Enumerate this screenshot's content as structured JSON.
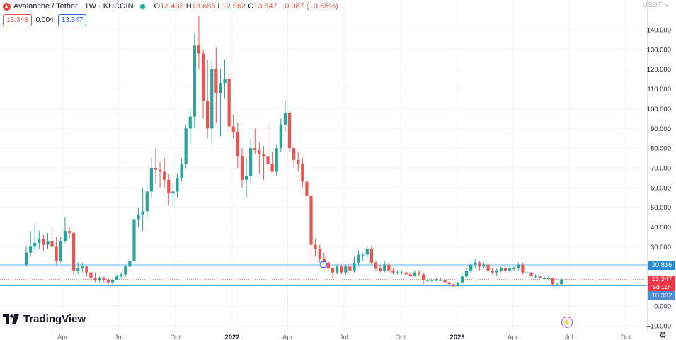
{
  "legend": {
    "pair": "Avalanche / Tether · 1W · KUCOIN",
    "open_label": "O",
    "open": "13.433",
    "high_label": "H",
    "high": "13.683",
    "low_label": "L",
    "low": "12.962",
    "close_label": "C",
    "close": "13.347",
    "change": "−0.087 (−0.65%)"
  },
  "order": {
    "sell_price": "13.343",
    "spread": "0.004",
    "buy_price": "13.347"
  },
  "currency": "USDT",
  "price_tags": {
    "resistance": "20.816",
    "last": "13.347",
    "countdown": "5d 11h",
    "support": "10.332"
  },
  "branding": {
    "logo_text": "TradingView"
  },
  "colors": {
    "up": "#26a69a",
    "down": "#ef5350",
    "resistance_line": "#5eb9f5",
    "support_line": "#2196f3",
    "support_tag": "#4c8ed9",
    "resistance_tag": "#2a8ad6",
    "last_tag": "#f23645",
    "grid": "#f0f3fa"
  },
  "icons": {
    "flash": "flash-icon",
    "settings": "gear-icon",
    "dropdown": "chevron-down-icon"
  },
  "chart_data": {
    "type": "candlestick",
    "interval": "1W",
    "ylim": [
      -10,
      148
    ],
    "y_ticks": [
      "−10.000",
      "0.000",
      "10.000",
      "20.000",
      "30.000",
      "40.000",
      "50.000",
      "60.000",
      "70.000",
      "80.000",
      "90.000",
      "100.000",
      "110.000",
      "120.000",
      "130.000",
      "140.000"
    ],
    "y_tick_values": [
      -10,
      0,
      10,
      20,
      30,
      40,
      50,
      60,
      70,
      80,
      90,
      100,
      110,
      120,
      130,
      140
    ],
    "x_ticks": [
      "Apr",
      "Jul",
      "Oct",
      "2022",
      "Apr",
      "Jul",
      "Oct",
      "2023",
      "Apr",
      "Jul",
      "Oct"
    ],
    "x_tick_dates": [
      "2021-04-01",
      "2021-07-01",
      "2021-10-01",
      "2022-01-01",
      "2022-04-01",
      "2022-07-01",
      "2022-10-01",
      "2023-01-01",
      "2023-04-01",
      "2023-07-01",
      "2023-10-01"
    ],
    "horizontal_lines": [
      {
        "price": 20.816,
        "style": "solid"
      },
      {
        "price": 13.347,
        "style": "dotted"
      },
      {
        "price": 10.332,
        "style": "solid"
      }
    ],
    "candles": [
      {
        "date": "2021-02-01",
        "open": 21,
        "high": 30,
        "low": 20,
        "close": 27
      },
      {
        "date": "2021-02-08",
        "open": 27,
        "high": 38,
        "low": 25,
        "close": 30
      },
      {
        "date": "2021-02-15",
        "open": 30,
        "high": 41,
        "low": 28,
        "close": 32
      },
      {
        "date": "2021-02-22",
        "open": 32,
        "high": 38,
        "low": 29,
        "close": 34
      },
      {
        "date": "2021-03-01",
        "open": 34,
        "high": 36,
        "low": 28,
        "close": 31
      },
      {
        "date": "2021-03-08",
        "open": 31,
        "high": 37,
        "low": 29,
        "close": 33
      },
      {
        "date": "2021-03-15",
        "open": 33,
        "high": 40,
        "low": 28,
        "close": 30
      },
      {
        "date": "2021-03-22",
        "open": 30,
        "high": 35,
        "low": 21,
        "close": 23
      },
      {
        "date": "2021-03-29",
        "open": 23,
        "high": 35,
        "low": 22,
        "close": 33
      },
      {
        "date": "2021-04-05",
        "open": 33,
        "high": 45,
        "low": 32,
        "close": 38
      },
      {
        "date": "2021-04-12",
        "open": 38,
        "high": 40,
        "low": 34,
        "close": 37
      },
      {
        "date": "2021-04-19",
        "open": 37,
        "high": 38,
        "low": 16,
        "close": 18
      },
      {
        "date": "2021-04-26",
        "open": 18,
        "high": 22,
        "low": 16,
        "close": 19
      },
      {
        "date": "2021-05-03",
        "open": 19,
        "high": 22,
        "low": 17,
        "close": 20
      },
      {
        "date": "2021-05-10",
        "open": 20,
        "high": 20,
        "low": 15,
        "close": 17
      },
      {
        "date": "2021-05-17",
        "open": 17,
        "high": 18,
        "low": 12,
        "close": 14
      },
      {
        "date": "2021-05-24",
        "open": 14,
        "high": 17,
        "low": 12,
        "close": 13
      },
      {
        "date": "2021-05-31",
        "open": 13,
        "high": 15,
        "low": 12,
        "close": 14
      },
      {
        "date": "2021-06-07",
        "open": 14,
        "high": 15,
        "low": 12,
        "close": 13
      },
      {
        "date": "2021-06-14",
        "open": 13,
        "high": 14,
        "low": 11,
        "close": 12
      },
      {
        "date": "2021-06-21",
        "open": 12,
        "high": 14,
        "low": 11,
        "close": 13
      },
      {
        "date": "2021-06-28",
        "open": 13,
        "high": 16,
        "low": 13,
        "close": 15
      },
      {
        "date": "2021-07-05",
        "open": 15,
        "high": 17,
        "low": 14,
        "close": 16
      },
      {
        "date": "2021-07-12",
        "open": 16,
        "high": 21,
        "low": 15,
        "close": 20
      },
      {
        "date": "2021-07-19",
        "open": 20,
        "high": 24,
        "low": 19,
        "close": 23
      },
      {
        "date": "2021-07-26",
        "open": 23,
        "high": 45,
        "low": 22,
        "close": 44
      },
      {
        "date": "2021-08-02",
        "open": 44,
        "high": 50,
        "low": 40,
        "close": 46
      },
      {
        "date": "2021-08-09",
        "open": 46,
        "high": 60,
        "low": 38,
        "close": 48
      },
      {
        "date": "2021-08-16",
        "open": 48,
        "high": 62,
        "low": 44,
        "close": 58
      },
      {
        "date": "2021-08-23",
        "open": 58,
        "high": 75,
        "low": 55,
        "close": 70
      },
      {
        "date": "2021-08-30",
        "open": 70,
        "high": 80,
        "low": 62,
        "close": 69
      },
      {
        "date": "2021-09-06",
        "open": 69,
        "high": 73,
        "low": 60,
        "close": 68
      },
      {
        "date": "2021-09-13",
        "open": 68,
        "high": 75,
        "low": 60,
        "close": 64
      },
      {
        "date": "2021-09-20",
        "open": 64,
        "high": 67,
        "low": 51,
        "close": 57
      },
      {
        "date": "2021-09-27",
        "open": 57,
        "high": 62,
        "low": 50,
        "close": 58
      },
      {
        "date": "2021-10-04",
        "open": 58,
        "high": 67,
        "low": 55,
        "close": 65
      },
      {
        "date": "2021-10-11",
        "open": 65,
        "high": 75,
        "low": 63,
        "close": 72
      },
      {
        "date": "2021-10-18",
        "open": 72,
        "high": 92,
        "low": 70,
        "close": 90
      },
      {
        "date": "2021-10-25",
        "open": 90,
        "high": 100,
        "low": 82,
        "close": 96
      },
      {
        "date": "2021-11-01",
        "open": 96,
        "high": 138,
        "low": 90,
        "close": 132
      },
      {
        "date": "2021-11-08",
        "open": 132,
        "high": 147,
        "low": 120,
        "close": 128
      },
      {
        "date": "2021-11-15",
        "open": 128,
        "high": 130,
        "low": 95,
        "close": 104
      },
      {
        "date": "2021-11-22",
        "open": 104,
        "high": 125,
        "low": 85,
        "close": 90
      },
      {
        "date": "2021-11-29",
        "open": 90,
        "high": 125,
        "low": 83,
        "close": 120
      },
      {
        "date": "2021-12-06",
        "open": 120,
        "high": 131,
        "low": 93,
        "close": 108
      },
      {
        "date": "2021-12-13",
        "open": 108,
        "high": 120,
        "low": 86,
        "close": 113
      },
      {
        "date": "2021-12-20",
        "open": 113,
        "high": 125,
        "low": 105,
        "close": 115
      },
      {
        "date": "2021-12-27",
        "open": 115,
        "high": 118,
        "low": 88,
        "close": 91
      },
      {
        "date": "2022-01-03",
        "open": 91,
        "high": 97,
        "low": 85,
        "close": 88
      },
      {
        "date": "2022-01-10",
        "open": 88,
        "high": 93,
        "low": 70,
        "close": 76
      },
      {
        "date": "2022-01-17",
        "open": 76,
        "high": 80,
        "low": 60,
        "close": 64
      },
      {
        "date": "2022-01-24",
        "open": 64,
        "high": 75,
        "low": 55,
        "close": 66
      },
      {
        "date": "2022-01-31",
        "open": 66,
        "high": 85,
        "low": 63,
        "close": 80
      },
      {
        "date": "2022-02-07",
        "open": 80,
        "high": 90,
        "low": 77,
        "close": 79
      },
      {
        "date": "2022-02-14",
        "open": 79,
        "high": 83,
        "low": 67,
        "close": 77
      },
      {
        "date": "2022-02-21",
        "open": 77,
        "high": 81,
        "low": 64,
        "close": 76
      },
      {
        "date": "2022-02-28",
        "open": 76,
        "high": 92,
        "low": 70,
        "close": 72
      },
      {
        "date": "2022-03-07",
        "open": 72,
        "high": 78,
        "low": 68,
        "close": 68
      },
      {
        "date": "2022-03-14",
        "open": 68,
        "high": 82,
        "low": 66,
        "close": 80
      },
      {
        "date": "2022-03-21",
        "open": 80,
        "high": 95,
        "low": 78,
        "close": 92
      },
      {
        "date": "2022-03-28",
        "open": 92,
        "high": 104,
        "low": 88,
        "close": 98
      },
      {
        "date": "2022-04-04",
        "open": 98,
        "high": 99,
        "low": 78,
        "close": 80
      },
      {
        "date": "2022-04-11",
        "open": 80,
        "high": 82,
        "low": 70,
        "close": 74
      },
      {
        "date": "2022-04-18",
        "open": 74,
        "high": 78,
        "low": 68,
        "close": 72
      },
      {
        "date": "2022-04-25",
        "open": 72,
        "high": 75,
        "low": 60,
        "close": 63
      },
      {
        "date": "2022-05-02",
        "open": 63,
        "high": 64,
        "low": 54,
        "close": 56
      },
      {
        "date": "2022-05-09",
        "open": 56,
        "high": 57,
        "low": 23,
        "close": 31
      },
      {
        "date": "2022-05-16",
        "open": 31,
        "high": 34,
        "low": 25,
        "close": 29
      },
      {
        "date": "2022-05-23",
        "open": 29,
        "high": 31,
        "low": 22,
        "close": 24
      },
      {
        "date": "2022-05-30",
        "open": 24,
        "high": 27,
        "low": 20,
        "close": 22
      },
      {
        "date": "2022-06-06",
        "open": 22,
        "high": 23,
        "low": 18,
        "close": 19
      },
      {
        "date": "2022-06-13",
        "open": 19,
        "high": 19,
        "low": 14,
        "close": 17
      },
      {
        "date": "2022-06-20",
        "open": 17,
        "high": 21,
        "low": 16,
        "close": 20
      },
      {
        "date": "2022-06-27",
        "open": 20,
        "high": 21,
        "low": 16,
        "close": 17
      },
      {
        "date": "2022-07-04",
        "open": 17,
        "high": 21,
        "low": 16,
        "close": 20
      },
      {
        "date": "2022-07-11",
        "open": 20,
        "high": 22,
        "low": 17,
        "close": 18
      },
      {
        "date": "2022-07-18",
        "open": 18,
        "high": 25,
        "low": 17,
        "close": 22
      },
      {
        "date": "2022-07-25",
        "open": 22,
        "high": 28,
        "low": 20,
        "close": 26
      },
      {
        "date": "2022-08-01",
        "open": 26,
        "high": 27,
        "low": 23,
        "close": 26
      },
      {
        "date": "2022-08-08",
        "open": 26,
        "high": 30,
        "low": 24,
        "close": 29
      },
      {
        "date": "2022-08-15",
        "open": 29,
        "high": 30,
        "low": 21,
        "close": 22
      },
      {
        "date": "2022-08-22",
        "open": 22,
        "high": 23,
        "low": 18,
        "close": 19
      },
      {
        "date": "2022-08-29",
        "open": 19,
        "high": 21,
        "low": 17,
        "close": 18
      },
      {
        "date": "2022-09-05",
        "open": 18,
        "high": 23,
        "low": 17,
        "close": 21
      },
      {
        "date": "2022-09-12",
        "open": 21,
        "high": 22,
        "low": 17,
        "close": 18
      },
      {
        "date": "2022-09-19",
        "open": 18,
        "high": 19,
        "low": 16,
        "close": 17
      },
      {
        "date": "2022-09-26",
        "open": 17,
        "high": 18,
        "low": 16,
        "close": 17
      },
      {
        "date": "2022-10-03",
        "open": 17,
        "high": 18,
        "low": 16,
        "close": 17
      },
      {
        "date": "2022-10-10",
        "open": 17,
        "high": 17,
        "low": 16,
        "close": 16
      },
      {
        "date": "2022-10-17",
        "open": 16,
        "high": 17,
        "low": 15,
        "close": 15
      },
      {
        "date": "2022-10-24",
        "open": 15,
        "high": 18,
        "low": 15,
        "close": 17
      },
      {
        "date": "2022-10-31",
        "open": 17,
        "high": 18,
        "low": 15,
        "close": 16
      },
      {
        "date": "2022-11-07",
        "open": 16,
        "high": 17,
        "low": 11,
        "close": 13
      },
      {
        "date": "2022-11-14",
        "open": 13,
        "high": 14,
        "low": 12,
        "close": 13
      },
      {
        "date": "2022-11-21",
        "open": 13,
        "high": 14,
        "low": 12,
        "close": 13
      },
      {
        "date": "2022-11-28",
        "open": 13,
        "high": 14,
        "low": 13,
        "close": 13
      },
      {
        "date": "2022-12-05",
        "open": 13,
        "high": 14,
        "low": 13,
        "close": 13
      },
      {
        "date": "2022-12-12",
        "open": 13,
        "high": 13,
        "low": 11,
        "close": 12
      },
      {
        "date": "2022-12-19",
        "open": 12,
        "high": 12,
        "low": 11,
        "close": 11
      },
      {
        "date": "2022-12-26",
        "open": 11,
        "high": 11,
        "low": 10,
        "close": 10
      },
      {
        "date": "2023-01-02",
        "open": 10,
        "high": 12,
        "low": 10,
        "close": 12
      },
      {
        "date": "2023-01-09",
        "open": 12,
        "high": 16,
        "low": 11,
        "close": 15
      },
      {
        "date": "2023-01-16",
        "open": 15,
        "high": 19,
        "low": 14,
        "close": 18
      },
      {
        "date": "2023-01-23",
        "open": 18,
        "high": 22,
        "low": 17,
        "close": 21
      },
      {
        "date": "2023-01-30",
        "open": 21,
        "high": 24,
        "low": 19,
        "close": 22
      },
      {
        "date": "2023-02-06",
        "open": 22,
        "high": 23,
        "low": 18,
        "close": 20
      },
      {
        "date": "2023-02-13",
        "open": 20,
        "high": 22,
        "low": 19,
        "close": 21
      },
      {
        "date": "2023-02-20",
        "open": 21,
        "high": 22,
        "low": 17,
        "close": 18
      },
      {
        "date": "2023-02-27",
        "open": 18,
        "high": 19,
        "low": 16,
        "close": 17
      },
      {
        "date": "2023-03-06",
        "open": 17,
        "high": 19,
        "low": 15,
        "close": 18
      },
      {
        "date": "2023-03-13",
        "open": 18,
        "high": 20,
        "low": 17,
        "close": 19
      },
      {
        "date": "2023-03-20",
        "open": 19,
        "high": 20,
        "low": 17,
        "close": 18
      },
      {
        "date": "2023-03-27",
        "open": 18,
        "high": 20,
        "low": 17,
        "close": 19
      },
      {
        "date": "2023-04-03",
        "open": 19,
        "high": 20,
        "low": 18,
        "close": 19
      },
      {
        "date": "2023-04-10",
        "open": 19,
        "high": 22,
        "low": 18,
        "close": 21
      },
      {
        "date": "2023-04-17",
        "open": 21,
        "high": 22,
        "low": 16,
        "close": 17
      },
      {
        "date": "2023-04-24",
        "open": 17,
        "high": 18,
        "low": 16,
        "close": 17
      },
      {
        "date": "2023-05-01",
        "open": 17,
        "high": 17,
        "low": 15,
        "close": 15
      },
      {
        "date": "2023-05-08",
        "open": 15,
        "high": 16,
        "low": 14,
        "close": 15
      },
      {
        "date": "2023-05-15",
        "open": 15,
        "high": 15,
        "low": 14,
        "close": 14
      },
      {
        "date": "2023-05-22",
        "open": 14,
        "high": 15,
        "low": 14,
        "close": 14
      },
      {
        "date": "2023-05-29",
        "open": 14,
        "high": 15,
        "low": 14,
        "close": 14
      },
      {
        "date": "2023-06-05",
        "open": 14,
        "high": 14,
        "low": 10,
        "close": 11
      },
      {
        "date": "2023-06-12",
        "open": 11,
        "high": 12,
        "low": 10,
        "close": 11
      },
      {
        "date": "2023-06-19",
        "open": 11,
        "high": 14,
        "low": 11,
        "close": 13.433
      },
      {
        "date": "2023-06-26",
        "open": 13.433,
        "high": 13.683,
        "low": 12.962,
        "close": 13.347
      }
    ]
  }
}
